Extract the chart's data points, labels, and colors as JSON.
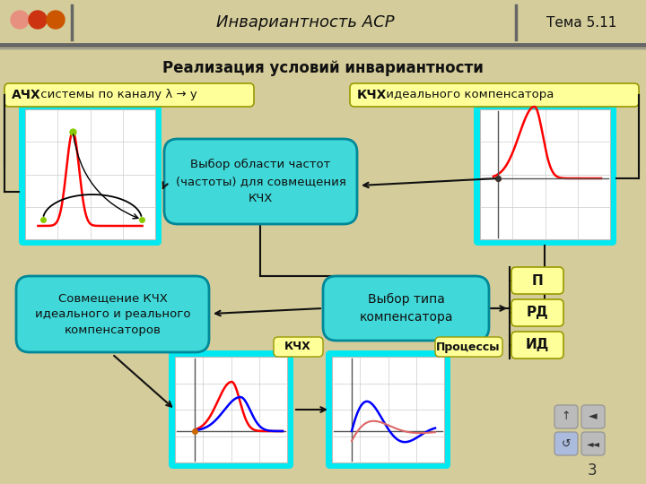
{
  "bg_color": "#d4cc9a",
  "title_text": "Инвариантность АСР",
  "topic_text": "Тема 5.11",
  "main_title": "Реализация условий инвариантности",
  "slide_number": "3",
  "ach_label_bold": "АЧХ",
  "ach_label_rest": " системы по каналу λ → y",
  "kch_label_bold": "КЧХ",
  "kch_label_rest": " идеального компенсатора",
  "center_box_text": "Выбор области частот\n(частоты) для совмещения\nКЧХ",
  "left_bottom_box_text": "Совмещение КЧХ\nидеального и реального\nкомпенсаторов",
  "right_bottom_box_text": "Выбор типа\nкомпенсатора",
  "kchx_label": "КЧХ",
  "process_label": "Процессы",
  "p_label": "П",
  "rd_label": "РД",
  "id_label": "ИД",
  "bg": "#d4cc9a",
  "cyan": "#00e8f0",
  "yellow_box": "#ffff99",
  "teal_box": "#40d8d8",
  "dot1": "#e89080",
  "dot2": "#cc3311",
  "dot3": "#cc5500",
  "dark": "#222222",
  "arrow_color": "#111111"
}
